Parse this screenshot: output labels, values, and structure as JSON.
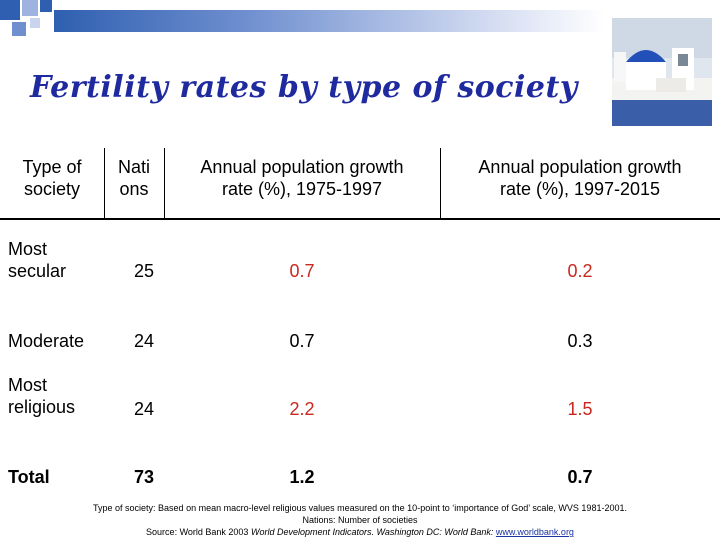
{
  "slide": {
    "title": "Fertility rates by type of society",
    "accent_color": "#1f2a9e",
    "highlight_color": "#c8281e"
  },
  "table": {
    "headers": [
      "Type of society",
      "Nati ons",
      "Annual population growth rate (%), 1975-1997",
      "Annual population growth rate (%), 1997-2015"
    ],
    "header_lines": {
      "type": [
        "Type of",
        "society"
      ],
      "nations": [
        "Nati",
        "ons"
      ],
      "growth1": [
        "Annual population growth",
        "rate (%), 1975-1997"
      ],
      "growth2": [
        "Annual population growth",
        "rate (%), 1997-2015"
      ]
    },
    "rows": [
      {
        "type_lines": [
          "Most",
          "secular"
        ],
        "nations": "25",
        "growth_1975_1997": "0.7",
        "growth_1997_2015": "0.2",
        "highlight": true
      },
      {
        "type_lines": [
          "Moderate"
        ],
        "nations": "24",
        "growth_1975_1997": "0.7",
        "growth_1997_2015": "0.3",
        "highlight": false
      },
      {
        "type_lines": [
          "Most",
          "religious"
        ],
        "nations": "24",
        "growth_1975_1997": "2.2",
        "growth_1997_2015": "1.5",
        "highlight": true
      },
      {
        "type_lines": [
          "Total"
        ],
        "nations": "73",
        "growth_1975_1997": "1.2",
        "growth_1997_2015": "0.7",
        "highlight": false,
        "bold": true
      }
    ]
  },
  "footer": {
    "line1": "Type of society: Based on mean macro-level religious values measured on the 10-point to ‘importance of God’ scale, WVS 1981-2001.",
    "line2": "Nations: Number of societies",
    "line3_prefix": "Source: World Bank 2003 ",
    "line3_italic": "World Development Indicators. Washington DC: World Bank:",
    "line3_link": "www.worldbank.org"
  }
}
